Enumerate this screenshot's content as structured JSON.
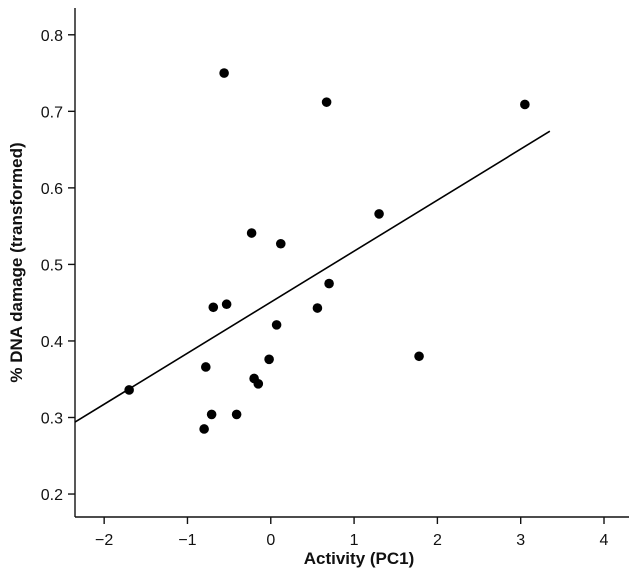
{
  "chart_data": {
    "type": "scatter",
    "title": "",
    "xlabel": "Activity (PC1)",
    "ylabel": "% DNA damage (transformed)",
    "xlim": [
      -2.35,
      4.3
    ],
    "ylim": [
      0.17,
      0.835
    ],
    "x_ticks": [
      -2,
      -1,
      0,
      1,
      2,
      3,
      4
    ],
    "x_tick_labels": [
      "−2",
      "−1",
      "0",
      "1",
      "2",
      "3",
      "4"
    ],
    "y_ticks": [
      0.2,
      0.3,
      0.4,
      0.5,
      0.6,
      0.7,
      0.8
    ],
    "y_tick_labels": [
      "0.2",
      "0.3",
      "0.4",
      "0.5",
      "0.6",
      "0.7",
      "0.8"
    ],
    "grid": false,
    "legend": "none",
    "marker_color": "#000000",
    "series": [
      {
        "points": [
          {
            "x": -1.7,
            "y": 0.336
          },
          {
            "x": -0.8,
            "y": 0.285
          },
          {
            "x": -0.78,
            "y": 0.366
          },
          {
            "x": -0.71,
            "y": 0.304
          },
          {
            "x": -0.69,
            "y": 0.444
          },
          {
            "x": -0.56,
            "y": 0.75
          },
          {
            "x": -0.53,
            "y": 0.448
          },
          {
            "x": -0.41,
            "y": 0.304
          },
          {
            "x": -0.23,
            "y": 0.541
          },
          {
            "x": -0.2,
            "y": 0.351
          },
          {
            "x": -0.15,
            "y": 0.344
          },
          {
            "x": -0.02,
            "y": 0.376
          },
          {
            "x": 0.07,
            "y": 0.421
          },
          {
            "x": 0.12,
            "y": 0.527
          },
          {
            "x": 0.56,
            "y": 0.443
          },
          {
            "x": 0.67,
            "y": 0.712
          },
          {
            "x": 0.7,
            "y": 0.475
          },
          {
            "x": 1.3,
            "y": 0.566
          },
          {
            "x": 1.78,
            "y": 0.38
          },
          {
            "x": 3.05,
            "y": 0.709
          }
        ]
      }
    ],
    "trend_line": {
      "type": "linear",
      "x": [
        -2.35,
        3.35
      ],
      "y": [
        0.294,
        0.674
      ]
    }
  }
}
